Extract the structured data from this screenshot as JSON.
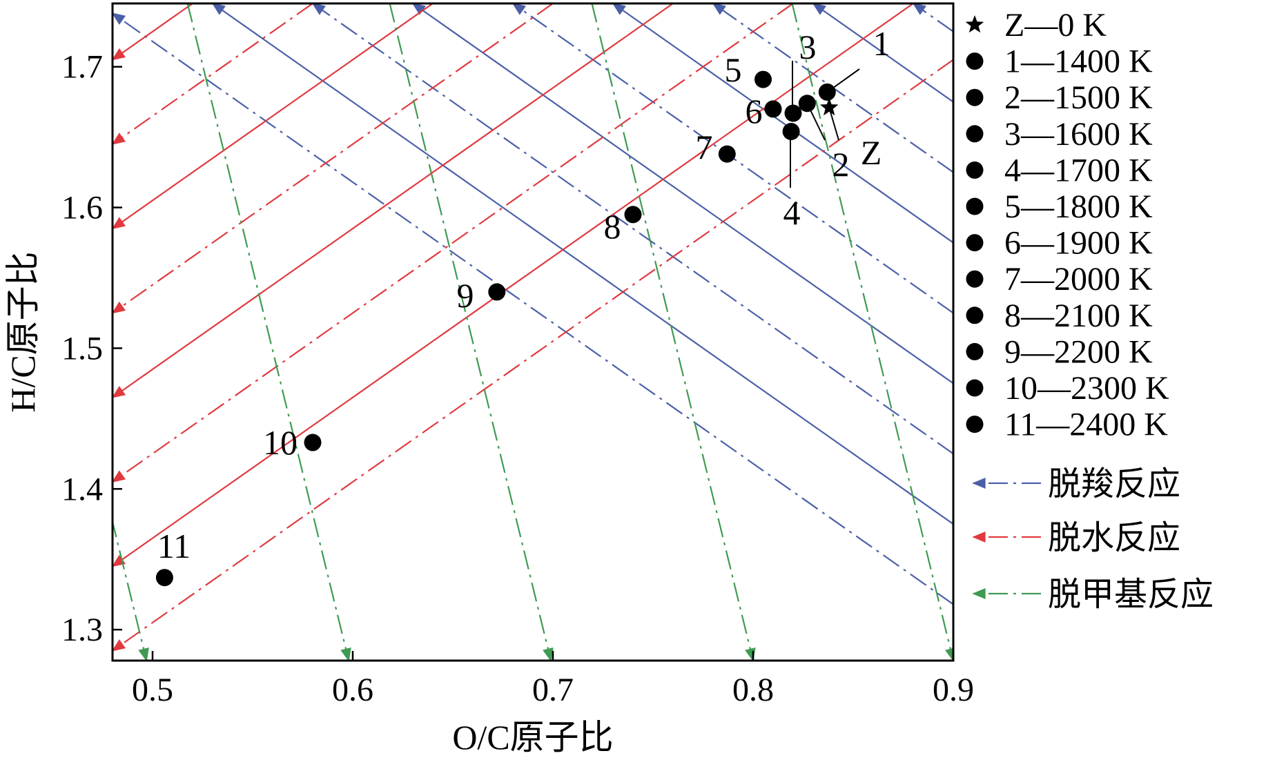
{
  "chart_data": {
    "type": "scatter",
    "xlabel": "O/C原子比",
    "ylabel": "H/C原子比",
    "xlim": [
      0.48,
      0.9
    ],
    "ylim": [
      1.278,
      1.745
    ],
    "xticks": [
      0.5,
      0.6,
      0.7,
      0.8,
      0.9
    ],
    "xtick_labels": [
      "0.5",
      "0.6",
      "0.7",
      "0.8",
      "0.9"
    ],
    "yticks": [
      1.3,
      1.4,
      1.5,
      1.6,
      1.7
    ],
    "ytick_labels": [
      "1.3",
      "1.4",
      "1.5",
      "1.6",
      "1.7"
    ],
    "grid": false,
    "legend_position": "right",
    "points": [
      {
        "label": "Z",
        "x": 0.838,
        "y": 1.671,
        "marker": "star",
        "legend": "Z—0 K"
      },
      {
        "label": "1",
        "x": 0.837,
        "y": 1.682,
        "marker": "circle",
        "legend": "1—1400 K"
      },
      {
        "label": "2",
        "x": 0.827,
        "y": 1.674,
        "marker": "circle",
        "legend": "2—1500 K"
      },
      {
        "label": "3",
        "x": 0.82,
        "y": 1.667,
        "marker": "circle",
        "legend": "3—1600 K"
      },
      {
        "label": "4",
        "x": 0.819,
        "y": 1.654,
        "marker": "circle",
        "legend": "4—1700 K"
      },
      {
        "label": "5",
        "x": 0.805,
        "y": 1.691,
        "marker": "circle",
        "legend": "5—1800 K"
      },
      {
        "label": "6",
        "x": 0.81,
        "y": 1.67,
        "marker": "circle",
        "legend": "6—1900 K"
      },
      {
        "label": "7",
        "x": 0.787,
        "y": 1.638,
        "marker": "circle",
        "legend": "7—2000 K"
      },
      {
        "label": "8",
        "x": 0.74,
        "y": 1.595,
        "marker": "circle",
        "legend": "8—2100 K"
      },
      {
        "label": "9",
        "x": 0.672,
        "y": 1.54,
        "marker": "circle",
        "legend": "9—2200 K"
      },
      {
        "label": "10",
        "x": 0.58,
        "y": 1.433,
        "marker": "circle",
        "legend": "10—2300 K"
      },
      {
        "label": "11",
        "x": 0.506,
        "y": 1.337,
        "marker": "circle",
        "legend": "11—2400 K"
      }
    ],
    "reaction_lines": [
      {
        "name": "脱羧反应",
        "color": "#4a5fa8",
        "slope": -1,
        "direction": "up-left"
      },
      {
        "name": "脱水反应",
        "color": "#e0393f",
        "slope": 1,
        "direction": "down-left"
      },
      {
        "name": "脱甲基反应",
        "color": "#3f9a52",
        "slope": -5.8,
        "direction": "down"
      }
    ]
  }
}
